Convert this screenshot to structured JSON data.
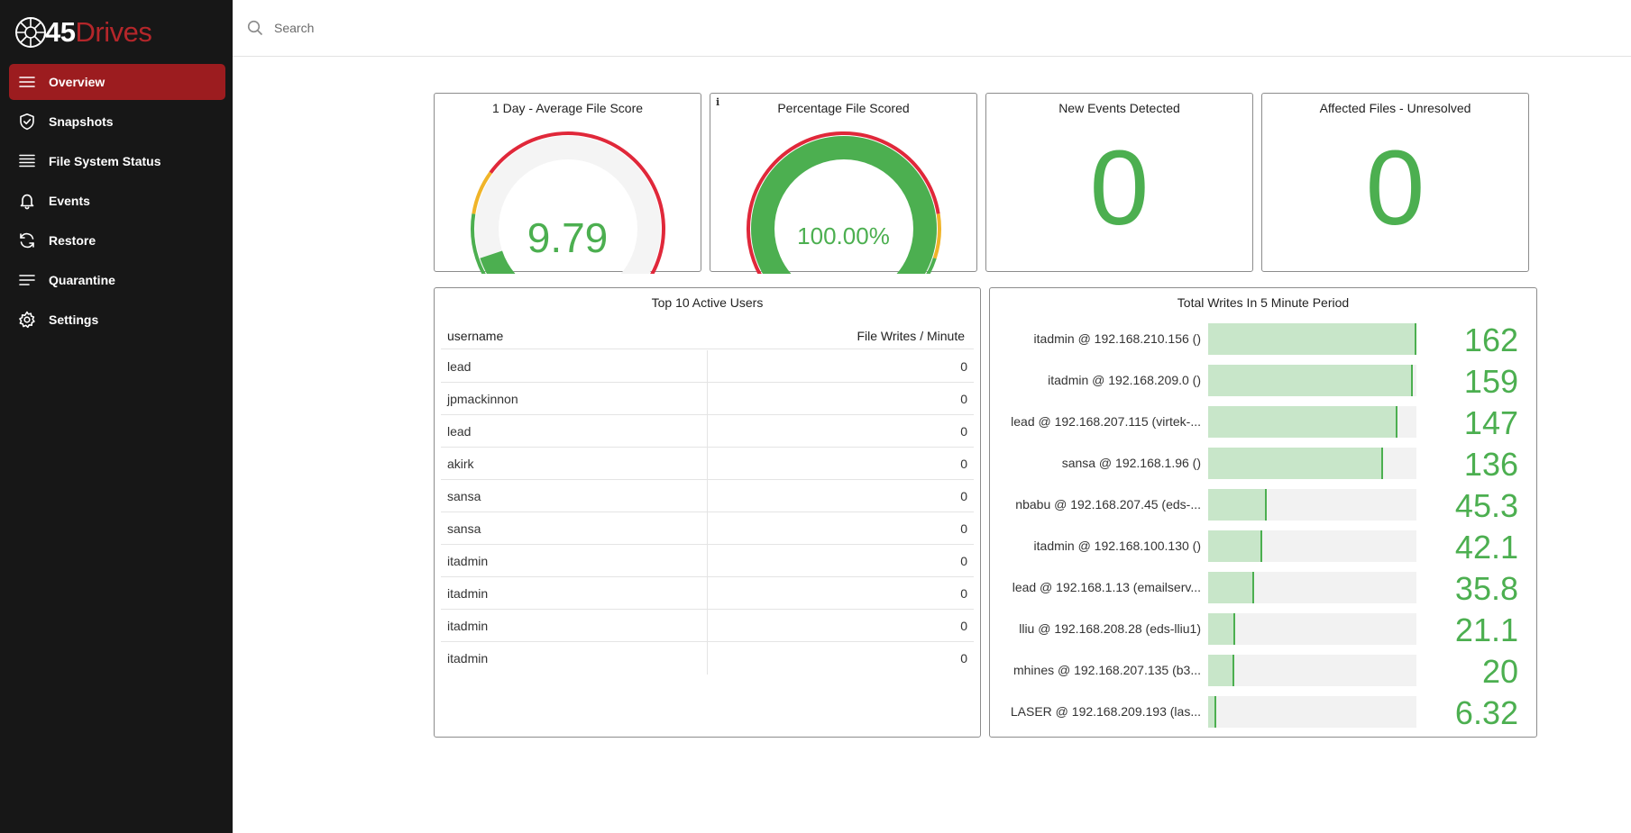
{
  "brand": {
    "number": "45",
    "word": "Drives"
  },
  "sidebar": {
    "items": [
      {
        "label": "Overview",
        "icon": "menu-icon",
        "active": true
      },
      {
        "label": "Snapshots",
        "icon": "shield-check-icon",
        "active": false
      },
      {
        "label": "File System Status",
        "icon": "list-icon",
        "active": false
      },
      {
        "label": "Events",
        "icon": "bell-icon",
        "active": false
      },
      {
        "label": "Restore",
        "icon": "refresh-icon",
        "active": false
      },
      {
        "label": "Quarantine",
        "icon": "lines-icon",
        "active": false
      },
      {
        "label": "Settings",
        "icon": "gear-icon",
        "active": false
      }
    ]
  },
  "search": {
    "placeholder": "Search",
    "value": ""
  },
  "panels": {
    "avg_score": {
      "title": "1 Day - Average File Score",
      "value_text": "9.79",
      "value": 9.79,
      "max": 100
    },
    "pct_scored": {
      "title": "Percentage File Scored",
      "info": "i",
      "value_text": "100.00%",
      "value": 100,
      "max": 100
    },
    "new_events": {
      "title": "New Events Detected",
      "value": "0"
    },
    "affected_files": {
      "title": "Affected Files - Unresolved",
      "value": "0"
    }
  },
  "users_table": {
    "title": "Top 10 Active Users",
    "columns": [
      "username",
      "File Writes / Minute"
    ],
    "rows": [
      {
        "username": "lead",
        "writes": "0"
      },
      {
        "username": "jpmackinnon",
        "writes": "0"
      },
      {
        "username": "lead",
        "writes": "0"
      },
      {
        "username": "akirk",
        "writes": "0"
      },
      {
        "username": "sansa",
        "writes": "0"
      },
      {
        "username": "sansa",
        "writes": "0"
      },
      {
        "username": "itadmin",
        "writes": "0"
      },
      {
        "username": "itadmin",
        "writes": "0"
      },
      {
        "username": "itadmin",
        "writes": "0"
      },
      {
        "username": "itadmin",
        "writes": "0"
      }
    ]
  },
  "writes_panel": {
    "title": "Total Writes In 5 Minute Period",
    "max": 162,
    "rows": [
      {
        "label": "itadmin @ 192.168.210.156 ()",
        "value": 162,
        "display": "162"
      },
      {
        "label": "itadmin @ 192.168.209.0 ()",
        "value": 159,
        "display": "159"
      },
      {
        "label": "lead @ 192.168.207.115 (virtek-...",
        "value": 147,
        "display": "147"
      },
      {
        "label": "sansa @ 192.168.1.96 ()",
        "value": 136,
        "display": "136"
      },
      {
        "label": "nbabu @ 192.168.207.45 (eds-...",
        "value": 45.3,
        "display": "45.3"
      },
      {
        "label": "itadmin @ 192.168.100.130 ()",
        "value": 42.1,
        "display": "42.1"
      },
      {
        "label": "lead @ 192.168.1.13 (emailserv...",
        "value": 35.8,
        "display": "35.8"
      },
      {
        "label": "lliu @ 192.168.208.28 (eds-lliu1)",
        "value": 21.1,
        "display": "21.1"
      },
      {
        "label": "mhines @ 192.168.207.135 (b3...",
        "value": 20,
        "display": "20"
      },
      {
        "label": "LASER @ 192.168.209.193 (las...",
        "value": 6.32,
        "display": "6.32"
      }
    ]
  },
  "colors": {
    "accent": "#9c1c1f",
    "sidebar_bg": "#171717",
    "good": "#4caf50",
    "warn": "#f0b429",
    "bad": "#e0283a",
    "bar_fill": "#c8e6c9"
  }
}
